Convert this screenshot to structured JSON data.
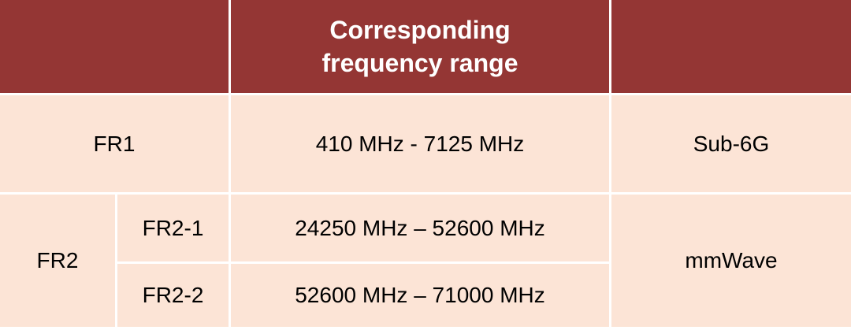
{
  "header": {
    "title": "Corresponding frequency range"
  },
  "rows": [
    {
      "band": "FR1",
      "range": "410 MHz - 7125 MHz",
      "name": "Sub-6G"
    },
    {
      "band": "FR2",
      "sub": [
        {
          "band": "FR2-1",
          "range": "24250 MHz – 52600 MHz"
        },
        {
          "band": "FR2-2",
          "range": "52600 MHz – 71000 MHz"
        }
      ],
      "name": "mmWave"
    }
  ]
}
